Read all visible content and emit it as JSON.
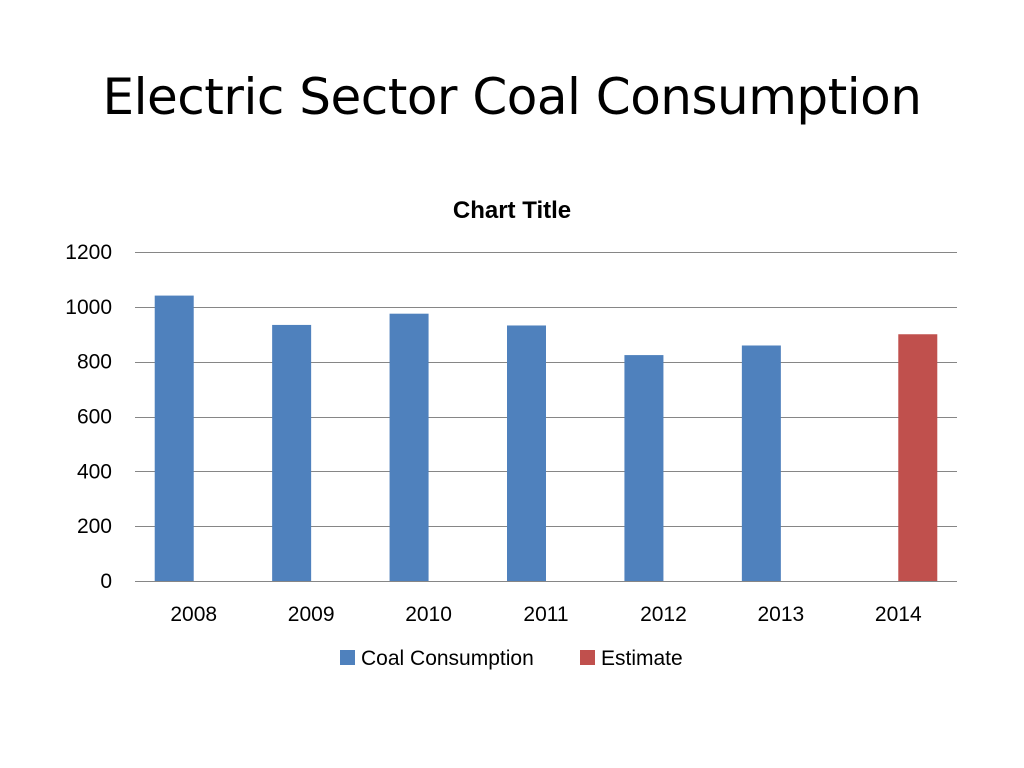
{
  "slide": {
    "title": "Electric Sector Coal Consumption"
  },
  "chart_data": {
    "type": "bar",
    "title": "Chart Title",
    "xlabel": "",
    "ylabel": "",
    "categories": [
      "2008",
      "2009",
      "2010",
      "2011",
      "2012",
      "2013",
      "2014"
    ],
    "series": [
      {
        "name": "Coal Consumption",
        "color": "#4f81bd",
        "values": [
          1041,
          934,
          975,
          932,
          824,
          859,
          null
        ]
      },
      {
        "name": "Estimate",
        "color": "#c0504d",
        "values": [
          null,
          null,
          null,
          null,
          null,
          null,
          900
        ]
      }
    ],
    "ylim": [
      0,
      1200
    ],
    "yticks": [
      0,
      200,
      400,
      600,
      800,
      1000,
      1200
    ],
    "grid": true,
    "legend": "bottom"
  }
}
